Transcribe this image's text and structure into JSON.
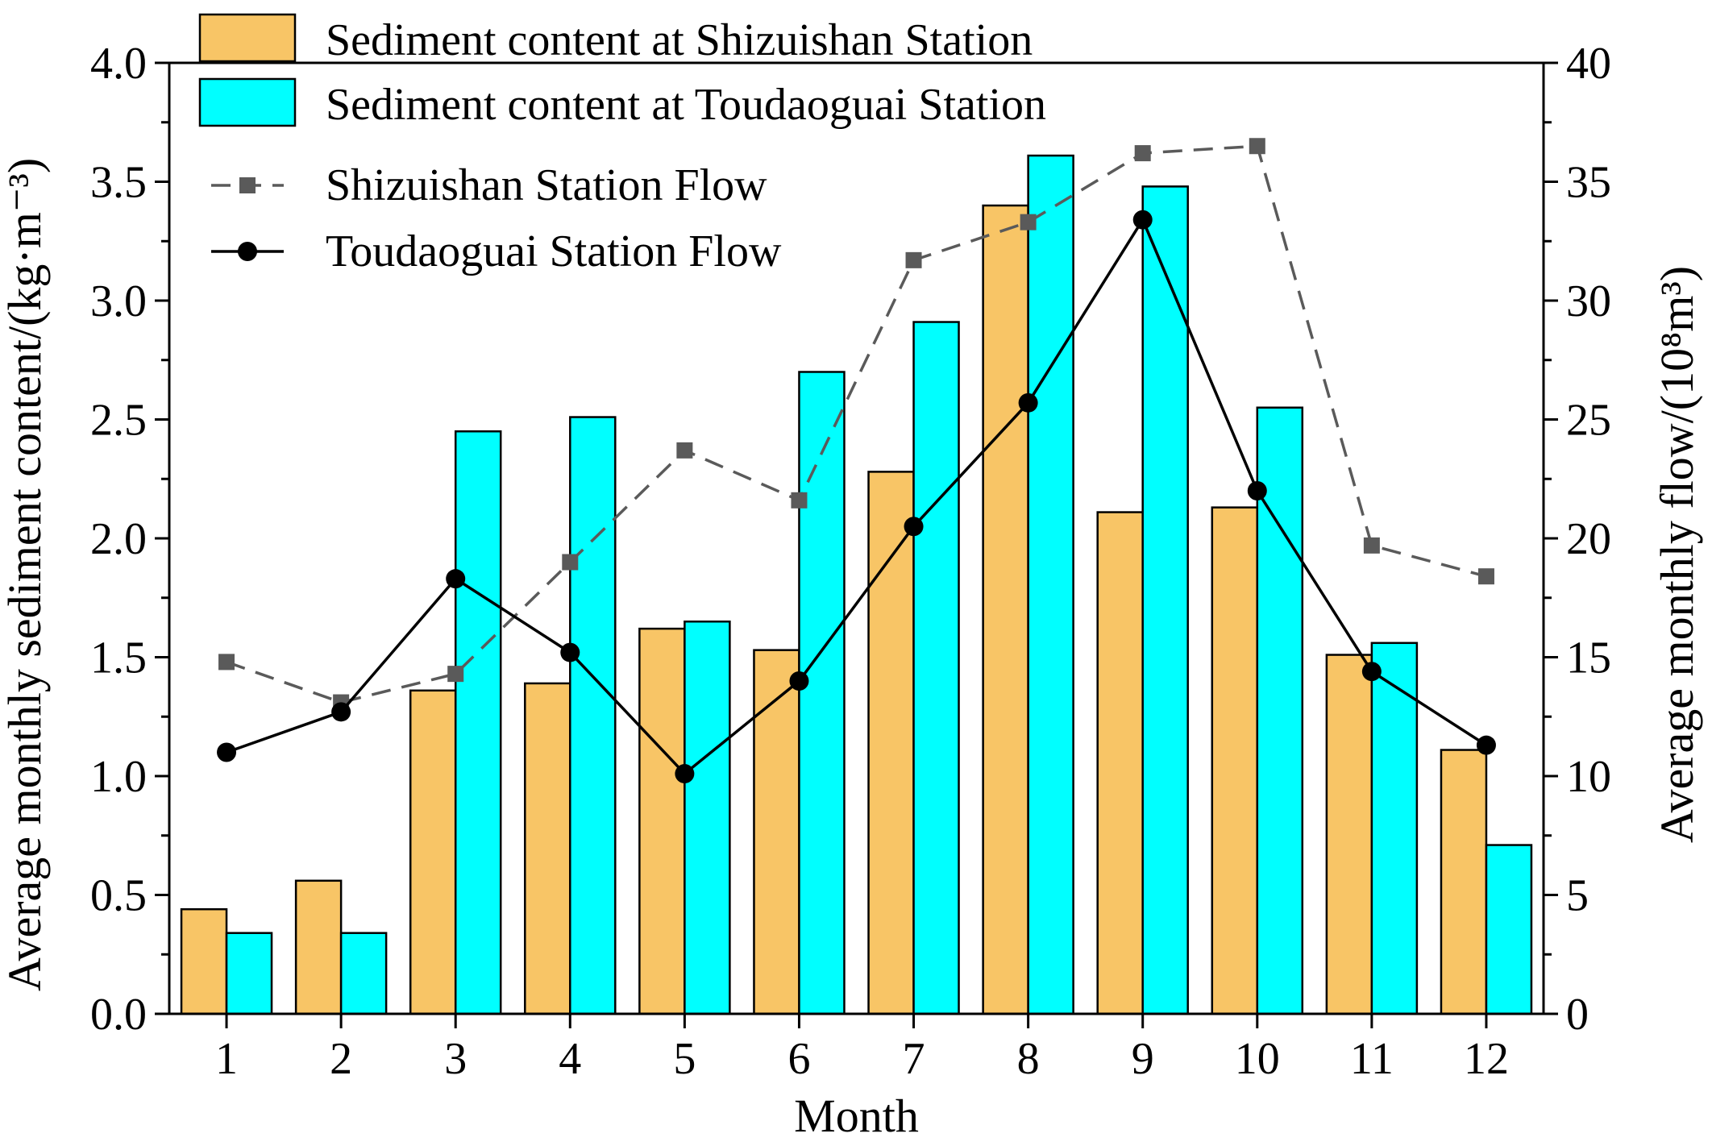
{
  "chart_data": {
    "type": "bar",
    "title": "",
    "categories": [
      "1",
      "2",
      "3",
      "4",
      "5",
      "6",
      "7",
      "8",
      "9",
      "10",
      "11",
      "12"
    ],
    "xlabel": "Month",
    "ylabel_left": "Average monthly sediment content/(kg·m⁻³)",
    "ylabel_right": "Average monthly flow/(10⁸m³)",
    "ylim_left": [
      0,
      4.0
    ],
    "ylim_right": [
      0,
      40
    ],
    "yticks_left": [
      "0.0",
      "0.5",
      "1.0",
      "1.5",
      "2.0",
      "2.5",
      "3.0",
      "3.5",
      "4.0"
    ],
    "yticks_right": [
      "0",
      "5",
      "10",
      "15",
      "20",
      "25",
      "30",
      "35",
      "40"
    ],
    "grid": false,
    "legend_position": "top-left",
    "bar_series": [
      {
        "name": "Sediment content at Shizuishan Station",
        "color": "#F8C566",
        "axis": "left",
        "values": [
          0.44,
          0.56,
          1.36,
          1.39,
          1.62,
          1.53,
          2.28,
          3.4,
          2.11,
          2.13,
          1.51,
          1.11
        ]
      },
      {
        "name": "Sediment content at Toudaoguai Station",
        "color": "#00FFFF",
        "axis": "left",
        "values": [
          0.34,
          0.34,
          2.45,
          2.51,
          1.65,
          2.7,
          2.91,
          3.61,
          3.48,
          2.55,
          1.56,
          0.71
        ]
      }
    ],
    "line_series": [
      {
        "name": "Shizuishan Station Flow",
        "color": "#5a5a5a",
        "style": "dashed",
        "marker": "square",
        "axis": "right",
        "values": [
          14.8,
          13.1,
          14.3,
          19.0,
          23.7,
          21.6,
          31.7,
          33.3,
          36.2,
          36.5,
          19.7,
          18.4
        ]
      },
      {
        "name": "Toudaoguai Station Flow",
        "color": "#000000",
        "style": "solid",
        "marker": "circle",
        "axis": "right",
        "values": [
          11.0,
          12.7,
          18.3,
          15.2,
          10.1,
          14.0,
          20.5,
          25.7,
          33.4,
          22.0,
          14.4,
          11.3
        ]
      }
    ]
  }
}
